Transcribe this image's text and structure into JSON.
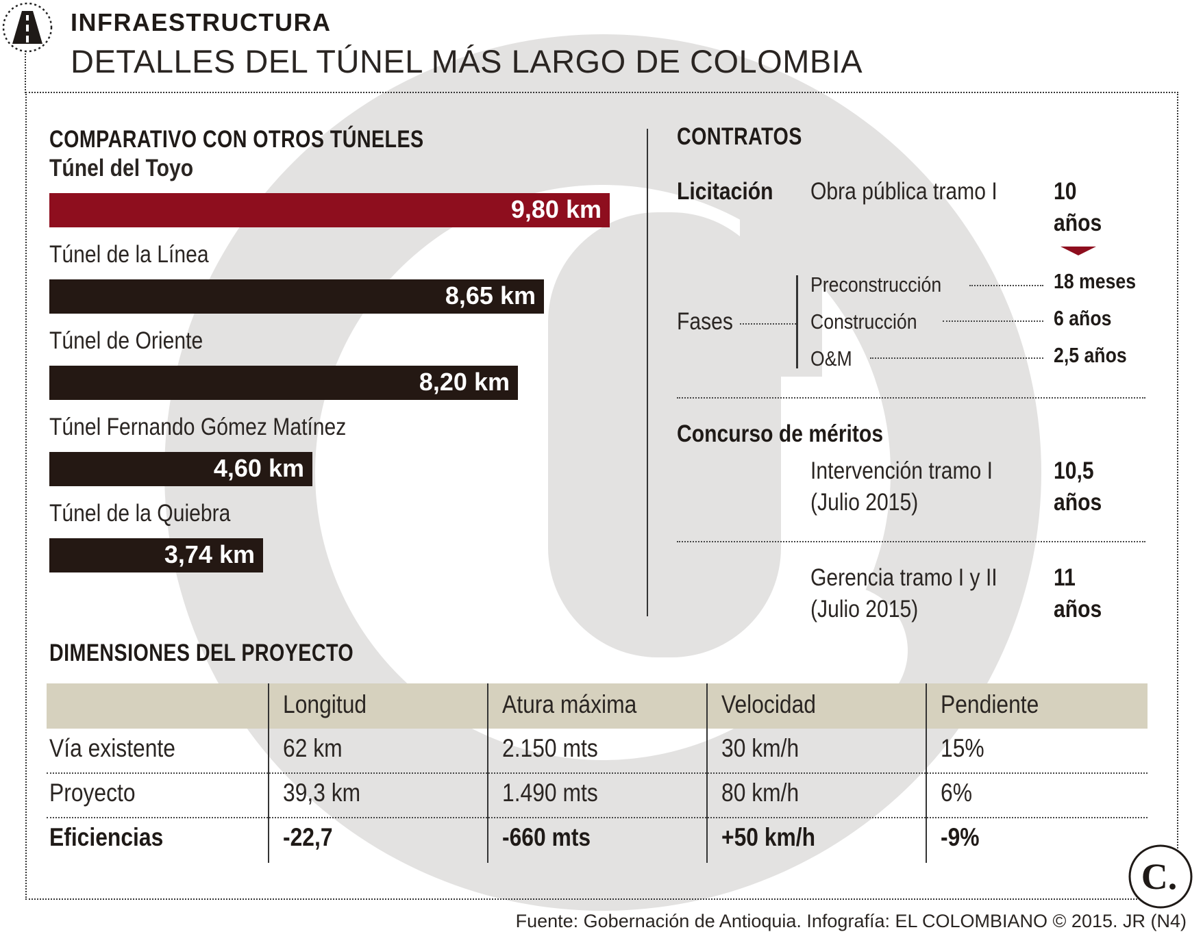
{
  "header": {
    "section_label": "INFRAESTRUCTURA",
    "title": "DETALLES DEL TÚNEL MÁS LARGO DE COLOMBIA",
    "icon": "road-icon"
  },
  "comparativo": {
    "heading": "COMPARATIVO CON OTROS TÚNELES"
  },
  "chart_data": {
    "type": "bar",
    "orientation": "horizontal",
    "title": "COMPARATIVO CON OTROS TÚNELES",
    "unit": "km",
    "categories": [
      "Túnel del Toyo",
      "Túnel de la Línea",
      "Túnel de Oriente",
      "Túnel Fernando Gómez Matínez",
      "Túnel de la Quiebra"
    ],
    "values": [
      9.8,
      8.65,
      8.2,
      4.6,
      3.74
    ],
    "value_labels": [
      "9,80 km",
      "8,65 km",
      "8,20 km",
      "4,60 km",
      "3,74 km"
    ],
    "colors": [
      "#8e0e1e",
      "#241813",
      "#241813",
      "#241813",
      "#241813"
    ],
    "xlim": [
      0,
      9.8
    ]
  },
  "contratos": {
    "heading": "CONTRATOS",
    "licitacion": {
      "label": "Licitación",
      "item": "Obra pública tramo I",
      "duration_line1": "10",
      "duration_line2": "años",
      "fases_label": "Fases",
      "fases": [
        {
          "name": "Preconstrucción",
          "duration": "18 meses"
        },
        {
          "name": "Construcción",
          "duration": "6 años"
        },
        {
          "name": "O&M",
          "duration": "2,5 años"
        }
      ]
    },
    "concurso": {
      "label": "Concurso de méritos",
      "items": [
        {
          "line1": "Intervención tramo I",
          "line2": "(Julio 2015)",
          "dur1": "10,5",
          "dur2": "años"
        },
        {
          "line1": "Gerencia tramo I y II",
          "line2": "(Julio 2015)",
          "dur1": "11",
          "dur2": "años"
        }
      ]
    }
  },
  "dimensiones": {
    "heading": "DIMENSIONES DEL PROYECTO",
    "columns": [
      "",
      "Longitud",
      "Atura máxima",
      "Velocidad",
      "Pendiente"
    ],
    "rows": [
      {
        "label": "Vía existente",
        "cells": [
          "62 km",
          "2.150 mts",
          "30 km/h",
          "15%"
        ],
        "bold": false
      },
      {
        "label": "Proyecto",
        "cells": [
          "39,3 km",
          "1.490 mts",
          "80 km/h",
          "6%"
        ],
        "bold": false
      },
      {
        "label": "Eficiencias",
        "cells": [
          "-22,7",
          "-660 mts",
          "+50 km/h",
          "-9%"
        ],
        "bold": true
      }
    ]
  },
  "footer": {
    "source": "Fuente: Gobernación de Antioquia. Infografía: EL COLOMBIANO © 2015. JR (N4)",
    "brand_letter": "C."
  },
  "colors": {
    "accent_red": "#8e0e1e",
    "bar_dark": "#241813",
    "table_header": "#d6d1be"
  }
}
